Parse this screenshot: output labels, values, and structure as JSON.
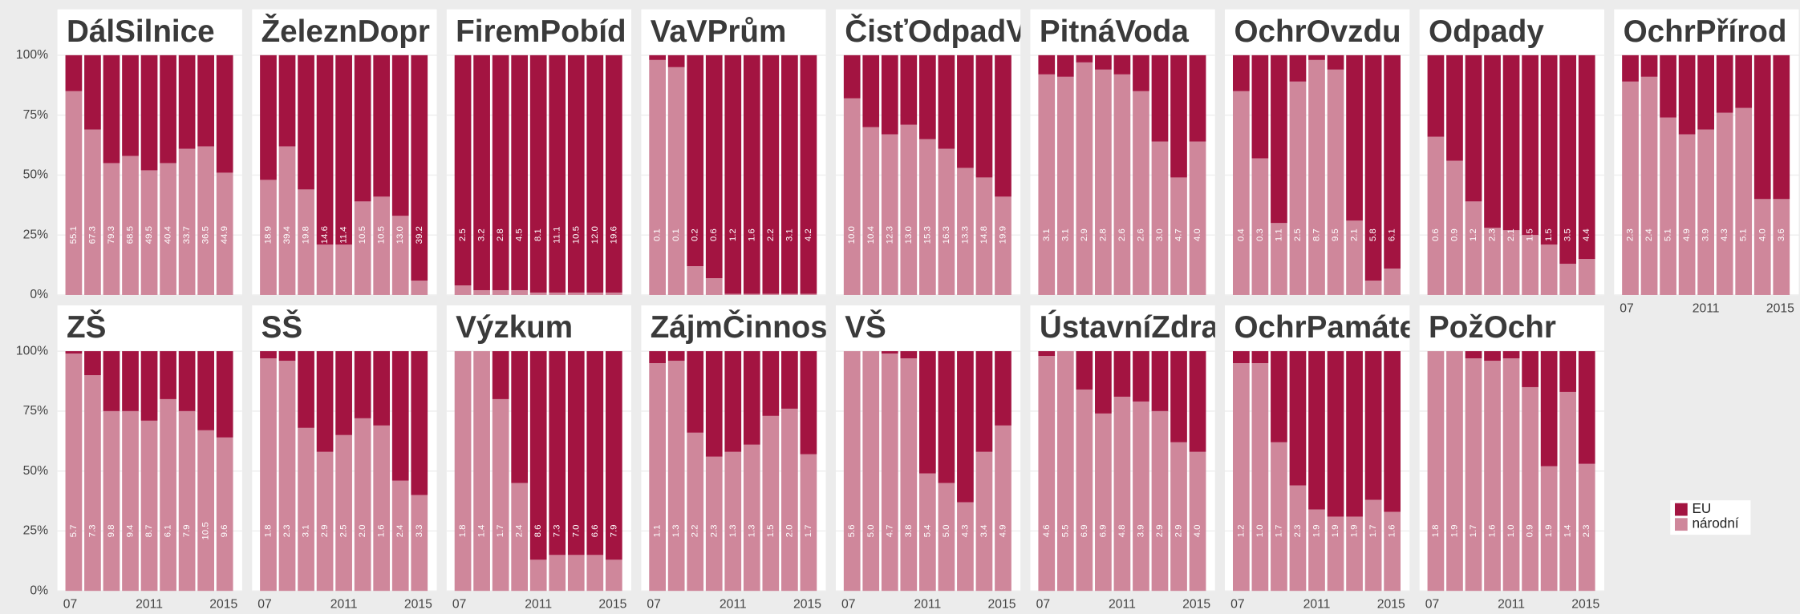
{
  "chart_data": {
    "type": "bar",
    "stacked": true,
    "categories": [
      "07",
      null,
      null,
      null,
      "2011",
      null,
      null,
      null,
      "2015"
    ],
    "ylim": [
      0,
      100
    ],
    "yticks": [
      {
        "value": 0,
        "label": "0%"
      },
      {
        "value": 25,
        "label": "25%"
      },
      {
        "value": 50,
        "label": "50%"
      },
      {
        "value": 75,
        "label": "75%"
      },
      {
        "value": 100,
        "label": "100%"
      }
    ],
    "grid": true,
    "legend": "right",
    "series": [
      {
        "name": "EU",
        "color": "#a31441"
      },
      {
        "name": "národní",
        "color": "#cf879b"
      }
    ],
    "panels": [
      {
        "title": "DálSilnice",
        "narodni": [
          85,
          69,
          55,
          58,
          52,
          55,
          61,
          62,
          51
        ],
        "eu": [
          15,
          31,
          45,
          42,
          48,
          45,
          39,
          38,
          49
        ],
        "labels": [
          "55.1",
          "67.3",
          "79.3",
          "68.5",
          "49.5",
          "40.4",
          "33.7",
          "36.5",
          "44.9"
        ]
      },
      {
        "title": "ŽeleznDopr",
        "narodni": [
          48,
          62,
          44,
          21,
          21,
          39,
          41,
          33,
          6
        ],
        "eu": [
          52,
          38,
          56,
          79,
          79,
          61,
          59,
          67,
          94
        ],
        "labels": [
          "18.9",
          "39.4",
          "19.8",
          "14.6",
          "11.4",
          "10.5",
          "10.5",
          "13.0",
          "39.2"
        ]
      },
      {
        "title": "FiremPobíd",
        "narodni": [
          4,
          2,
          2,
          2,
          1,
          1,
          1,
          1,
          1
        ],
        "eu": [
          96,
          98,
          98,
          98,
          99,
          99,
          99,
          99,
          99
        ],
        "labels": [
          "2.5",
          "3.2",
          "2.8",
          "4.5",
          "8.1",
          "11.1",
          "10.5",
          "12.0",
          "19.6"
        ]
      },
      {
        "title": "VaVPrům",
        "narodni": [
          98,
          95,
          12,
          7,
          0.5,
          0.5,
          0.5,
          0.5,
          0.5
        ],
        "eu": [
          2,
          5,
          88,
          93,
          99.5,
          99.5,
          99.5,
          99.5,
          99.5
        ],
        "labels": [
          "0.1",
          "0.1",
          "0.2",
          "0.6",
          "1.2",
          "1.6",
          "2.2",
          "3.1",
          "4.2"
        ]
      },
      {
        "title": "ČisťOdpadV",
        "narodni": [
          82,
          70,
          67,
          71,
          65,
          61,
          53,
          49,
          41
        ],
        "eu": [
          18,
          30,
          33,
          29,
          35,
          39,
          47,
          51,
          59
        ],
        "labels": [
          "10.0",
          "10.4",
          "12.3",
          "13.0",
          "15.3",
          "16.3",
          "13.3",
          "14.8",
          "19.9"
        ]
      },
      {
        "title": "PitnáVoda",
        "narodni": [
          92,
          91,
          97,
          94,
          92,
          85,
          64,
          49,
          64
        ],
        "eu": [
          8,
          9,
          3,
          6,
          8,
          15,
          36,
          51,
          36
        ],
        "labels": [
          "3.1",
          "3.1",
          "2.9",
          "2.8",
          "2.6",
          "2.6",
          "3.0",
          "4.7",
          "4.0"
        ]
      },
      {
        "title": "OchrOvzdu",
        "narodni": [
          85,
          57,
          30,
          89,
          98,
          94,
          31,
          6,
          11
        ],
        "eu": [
          15,
          43,
          70,
          11,
          2,
          6,
          69,
          94,
          89
        ],
        "labels": [
          "0.4",
          "0.3",
          "1.1",
          "2.5",
          "8.7",
          "9.5",
          "2.1",
          "5.8",
          "6.1"
        ]
      },
      {
        "title": "Odpady",
        "narodni": [
          66,
          56,
          39,
          28,
          27,
          25,
          21,
          13,
          15
        ],
        "eu": [
          34,
          44,
          61,
          72,
          73,
          75,
          79,
          87,
          85
        ],
        "labels": [
          "0.6",
          "0.9",
          "1.2",
          "2.3",
          "2.1",
          "1.5",
          "1.5",
          "3.5",
          "4.4"
        ]
      },
      {
        "title": "OchrPřírod",
        "narodni": [
          89,
          91,
          74,
          67,
          69,
          76,
          78,
          40,
          40
        ],
        "eu": [
          11,
          9,
          26,
          33,
          31,
          24,
          22,
          60,
          60
        ],
        "labels": [
          "2.3",
          "2.4",
          "5.1",
          "4.9",
          "3.9",
          "4.3",
          "5.1",
          "4.0",
          "3.6"
        ],
        "xaxis": true
      },
      {
        "title": "ZŠ",
        "narodni": [
          99,
          90,
          75,
          75,
          71,
          80,
          75,
          67,
          64
        ],
        "eu": [
          1,
          10,
          25,
          25,
          29,
          20,
          25,
          33,
          36
        ],
        "labels": [
          "5.7",
          "7.3",
          "9.8",
          "9.4",
          "8.7",
          "6.1",
          "7.9",
          "10.5",
          "9.6"
        ],
        "xaxis": true
      },
      {
        "title": "SŠ",
        "narodni": [
          97,
          96,
          68,
          58,
          65,
          72,
          69,
          46,
          40
        ],
        "eu": [
          3,
          4,
          32,
          42,
          35,
          28,
          31,
          54,
          60
        ],
        "labels": [
          "1.8",
          "2.3",
          "3.1",
          "2.9",
          "2.5",
          "2.0",
          "1.6",
          "2.4",
          "3.3"
        ],
        "xaxis": true
      },
      {
        "title": "Výzkum",
        "narodni": [
          100,
          100,
          80,
          45,
          13,
          15,
          15,
          15,
          13
        ],
        "eu": [
          0,
          0,
          20,
          55,
          87,
          85,
          85,
          85,
          87
        ],
        "labels": [
          "1.8",
          "1.4",
          "1.7",
          "2.4",
          "8.6",
          "7.3",
          "7.0",
          "6.6",
          "7.9"
        ],
        "xaxis": true
      },
      {
        "title": "ZájmČinnos",
        "narodni": [
          95,
          96,
          66,
          56,
          58,
          61,
          73,
          76,
          57
        ],
        "eu": [
          5,
          4,
          34,
          44,
          42,
          39,
          27,
          24,
          43
        ],
        "labels": [
          "1.1",
          "1.3",
          "2.2",
          "2.3",
          "1.3",
          "1.3",
          "1.5",
          "2.0",
          "1.7"
        ],
        "xaxis": true
      },
      {
        "title": "VŠ",
        "narodni": [
          100,
          100,
          99,
          97,
          49,
          45,
          37,
          58,
          69
        ],
        "eu": [
          0,
          0,
          1,
          3,
          51,
          55,
          63,
          42,
          31
        ],
        "labels": [
          "5.6",
          "5.0",
          "4.7",
          "3.8",
          "5.4",
          "5.0",
          "4.3",
          "3.4",
          "4.9"
        ],
        "xaxis": true
      },
      {
        "title": "ÚstavníZdra",
        "narodni": [
          98,
          100,
          84,
          74,
          81,
          79,
          75,
          62,
          58
        ],
        "eu": [
          2,
          0,
          16,
          26,
          19,
          21,
          25,
          38,
          42
        ],
        "labels": [
          "4.6",
          "5.5",
          "6.9",
          "6.9",
          "4.8",
          "3.9",
          "2.9",
          "2.9",
          "4.0"
        ],
        "xaxis": true
      },
      {
        "title": "OchrPamáte",
        "narodni": [
          95,
          95,
          62,
          44,
          34,
          31,
          31,
          38,
          33
        ],
        "eu": [
          5,
          5,
          38,
          56,
          66,
          69,
          69,
          62,
          67
        ],
        "labels": [
          "1.2",
          "1.0",
          "1.7",
          "2.3",
          "1.9",
          "1.9",
          "1.9",
          "1.7",
          "1.6"
        ],
        "xaxis": true
      },
      {
        "title": "PožOchr",
        "narodni": [
          100,
          100,
          97,
          96,
          97,
          85,
          52,
          83,
          53
        ],
        "eu": [
          0,
          0,
          3,
          4,
          3,
          15,
          48,
          17,
          47
        ],
        "labels": [
          "1.8",
          "1.9",
          "1.7",
          "1.6",
          "1.0",
          "0.9",
          "1.9",
          "1.4",
          "2.3"
        ],
        "xaxis": true
      }
    ]
  }
}
